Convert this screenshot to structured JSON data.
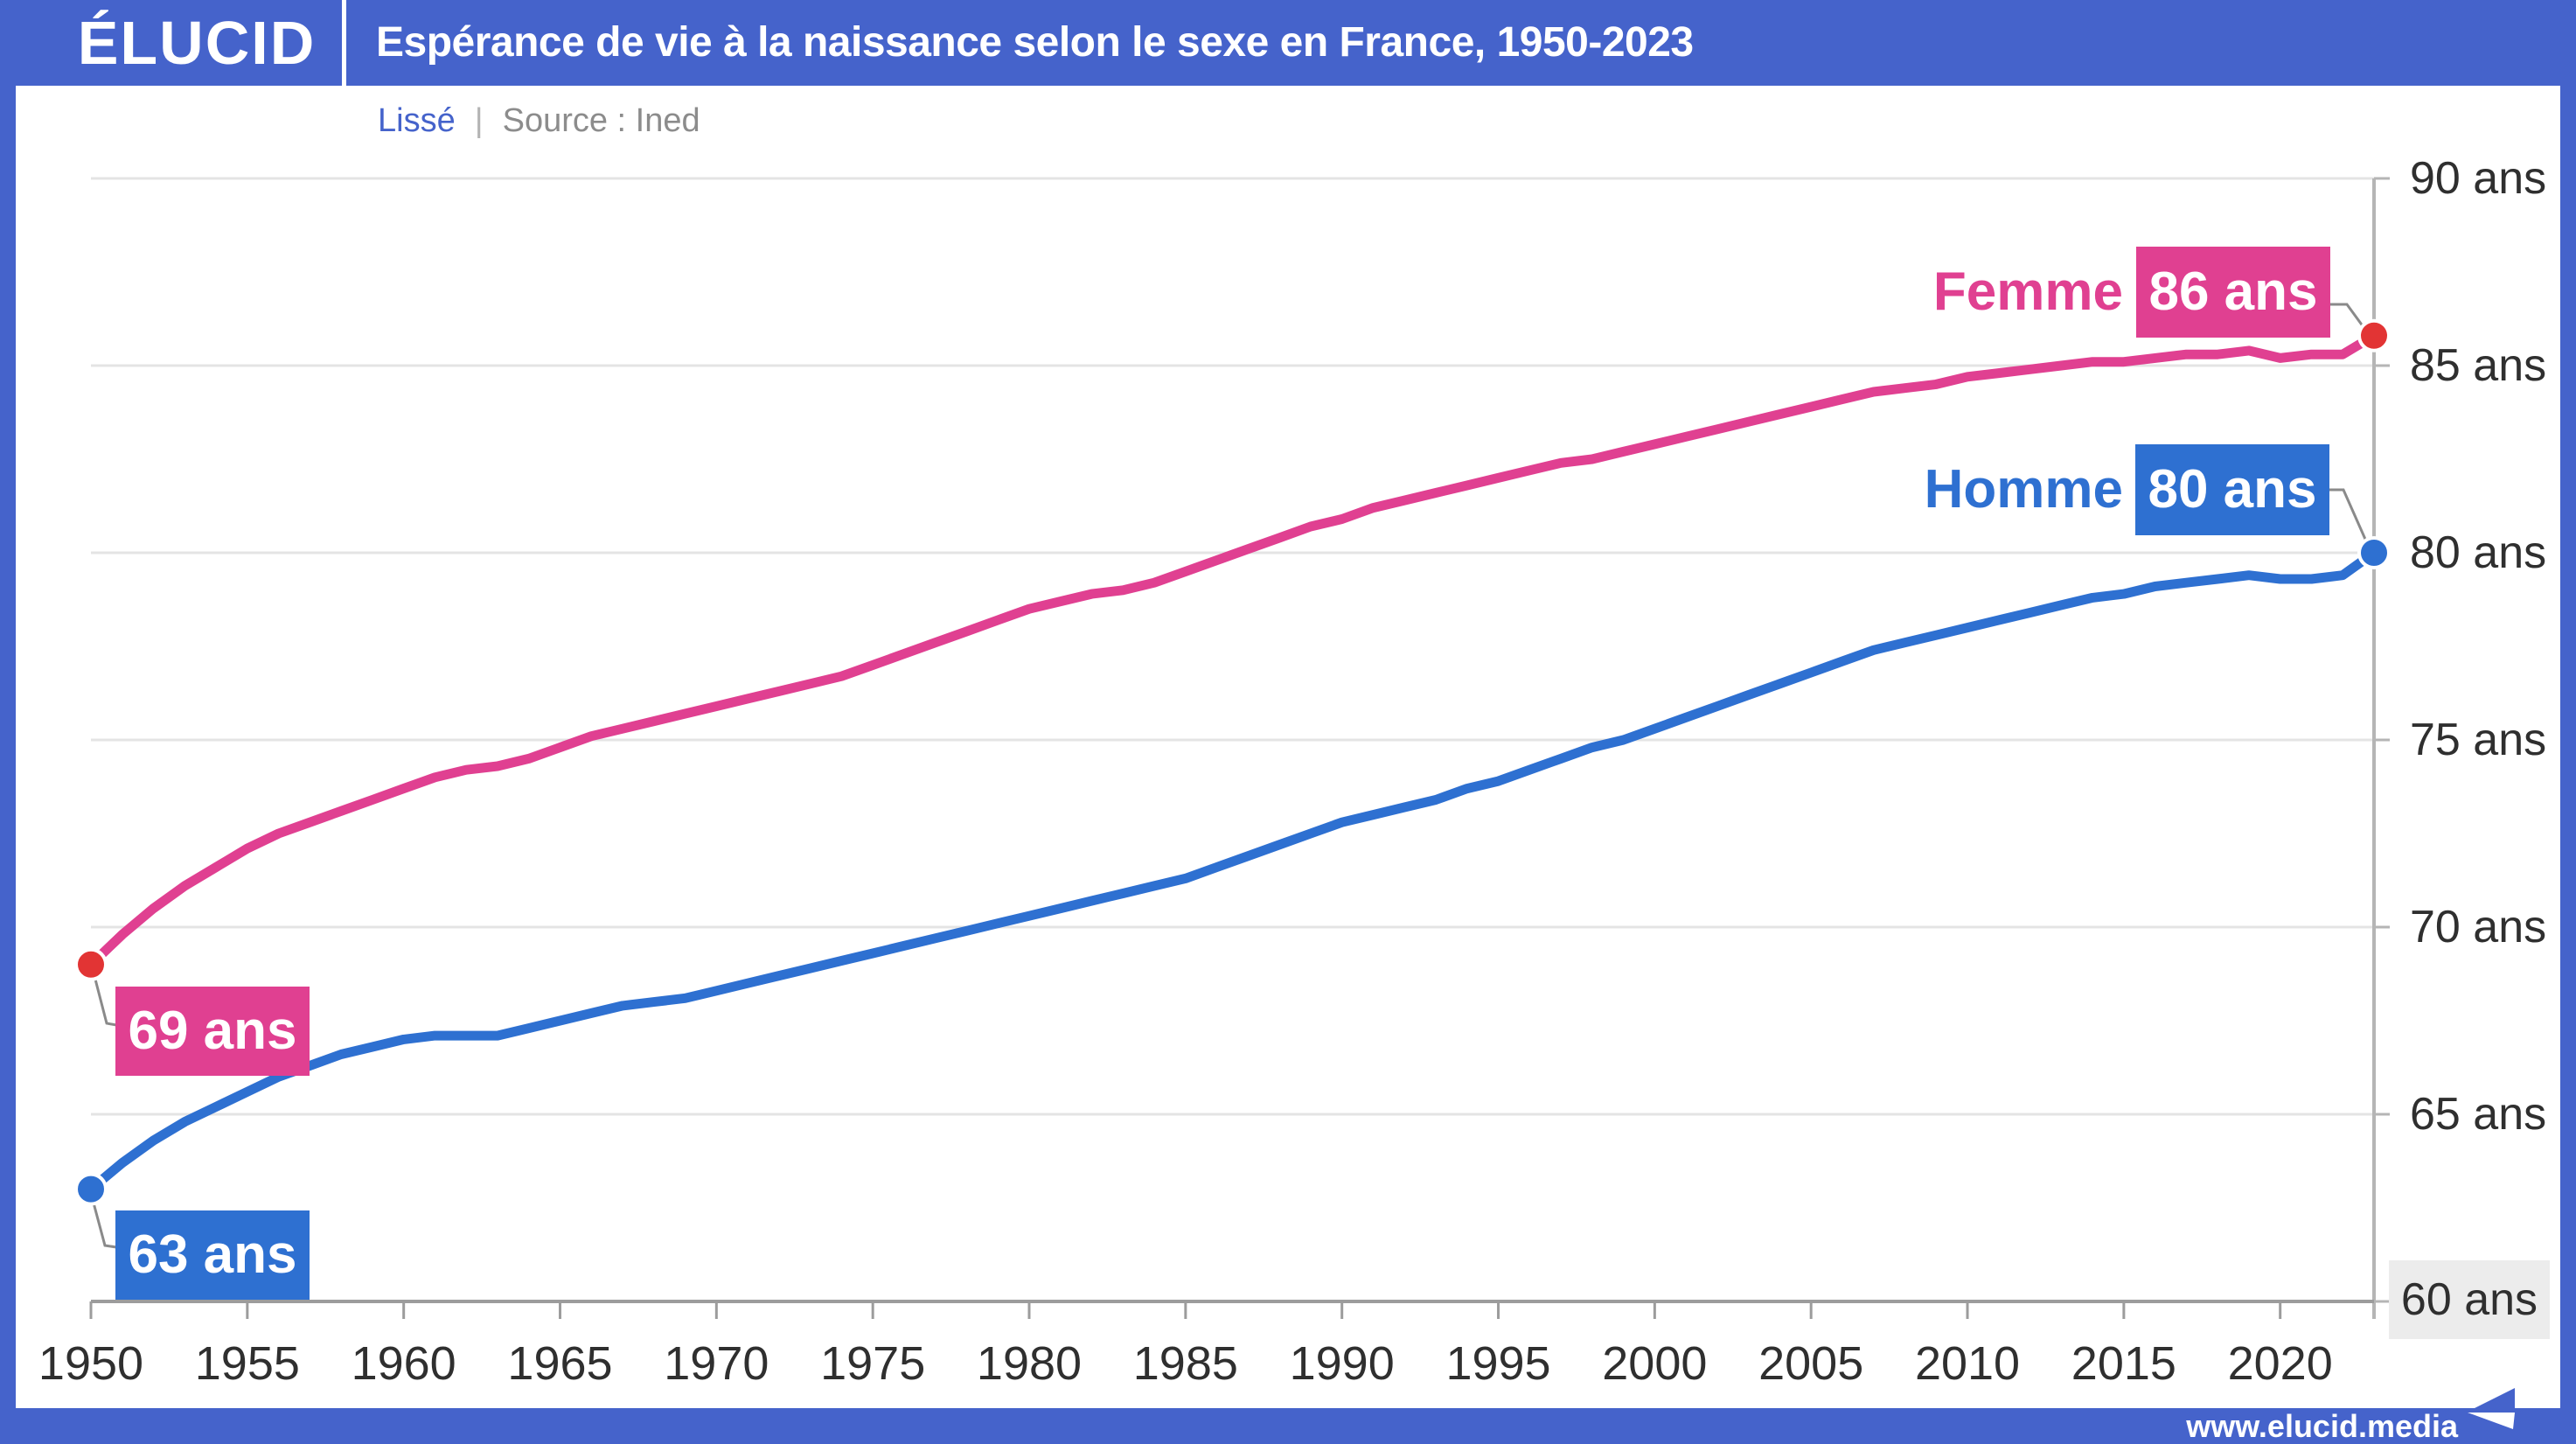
{
  "header": {
    "logo": "ÉLUCID",
    "title": "Espérance de vie à la naissance selon le sexe en France, 1950-2023"
  },
  "subtitle": {
    "mode_label": "Lissé",
    "separator": "|",
    "source_label": "Source : Ined"
  },
  "annotations": {
    "femme_label": "Femme",
    "femme_value": "86 ans",
    "homme_label": "Homme",
    "homme_value": "80 ans",
    "femme_start_value": "69 ans",
    "homme_start_value": "63 ans"
  },
  "footer": {
    "website": "www.elucid.media"
  },
  "colors": {
    "frame_blue": "#4563cb",
    "femme_pink": "#e04091",
    "homme_blue": "#2e70d1",
    "end_dot_red": "#e23434",
    "grid": "#e4e4e4",
    "axis": "#9c9c9c",
    "axis_light": "#b5b5b5",
    "connector_gray": "#8a8a8a",
    "tick_text": "#2f2f2f",
    "muted_text": "#8c8c8c",
    "highlight_bg": "#ececec"
  },
  "chart_data": {
    "type": "line",
    "title": "Espérance de vie à la naissance selon le sexe en France, 1950-2023",
    "source": "Source : Ined",
    "smoothing": "Lissé",
    "xlabel": "",
    "ylabel": "ans",
    "xlim": [
      1950,
      2023
    ],
    "ylim": [
      60,
      90
    ],
    "grid": "horizontal",
    "legend_position": "end-of-line",
    "x": [
      1950,
      1951,
      1952,
      1953,
      1954,
      1955,
      1956,
      1957,
      1958,
      1959,
      1960,
      1961,
      1962,
      1963,
      1964,
      1965,
      1966,
      1967,
      1968,
      1969,
      1970,
      1971,
      1972,
      1973,
      1974,
      1975,
      1976,
      1977,
      1978,
      1979,
      1980,
      1981,
      1982,
      1983,
      1984,
      1985,
      1986,
      1987,
      1988,
      1989,
      1990,
      1991,
      1992,
      1993,
      1994,
      1995,
      1996,
      1997,
      1998,
      1999,
      2000,
      2001,
      2002,
      2003,
      2004,
      2005,
      2006,
      2007,
      2008,
      2009,
      2010,
      2011,
      2012,
      2013,
      2014,
      2015,
      2016,
      2017,
      2018,
      2019,
      2020,
      2021,
      2022,
      2023
    ],
    "x_ticks": [
      1950,
      1955,
      1960,
      1965,
      1970,
      1975,
      1980,
      1985,
      1990,
      1995,
      2000,
      2005,
      2010,
      2015,
      2020
    ],
    "y_ticks": [
      {
        "value": 90,
        "label": "90 ans",
        "highlight": false
      },
      {
        "value": 85,
        "label": "85 ans",
        "highlight": false
      },
      {
        "value": 80,
        "label": "80 ans",
        "highlight": false
      },
      {
        "value": 75,
        "label": "75 ans",
        "highlight": false
      },
      {
        "value": 70,
        "label": "70 ans",
        "highlight": false
      },
      {
        "value": 65,
        "label": "65 ans",
        "highlight": false
      },
      {
        "value": 60,
        "label": "60 ans",
        "highlight": true
      }
    ],
    "series": [
      {
        "name": "Femme",
        "color": "#e04091",
        "point_color": "#e23434",
        "start_label": "69 ans",
        "end_label": "86 ans",
        "values": [
          69.0,
          69.8,
          70.5,
          71.1,
          71.6,
          72.1,
          72.5,
          72.8,
          73.1,
          73.4,
          73.7,
          74.0,
          74.2,
          74.3,
          74.5,
          74.8,
          75.1,
          75.3,
          75.5,
          75.7,
          75.9,
          76.1,
          76.3,
          76.5,
          76.7,
          77.0,
          77.3,
          77.6,
          77.9,
          78.2,
          78.5,
          78.7,
          78.9,
          79.0,
          79.2,
          79.5,
          79.8,
          80.1,
          80.4,
          80.7,
          80.9,
          81.2,
          81.4,
          81.6,
          81.8,
          82.0,
          82.2,
          82.4,
          82.5,
          82.7,
          82.9,
          83.1,
          83.3,
          83.5,
          83.7,
          83.9,
          84.1,
          84.3,
          84.4,
          84.5,
          84.7,
          84.8,
          84.9,
          85.0,
          85.1,
          85.1,
          85.2,
          85.3,
          85.3,
          85.4,
          85.2,
          85.3,
          85.3,
          85.8
        ]
      },
      {
        "name": "Homme",
        "color": "#2e70d1",
        "point_color": "#2e70d1",
        "start_label": "63 ans",
        "end_label": "80 ans",
        "values": [
          63.0,
          63.7,
          64.3,
          64.8,
          65.2,
          65.6,
          66.0,
          66.3,
          66.6,
          66.8,
          67.0,
          67.1,
          67.1,
          67.1,
          67.3,
          67.5,
          67.7,
          67.9,
          68.0,
          68.1,
          68.3,
          68.5,
          68.7,
          68.9,
          69.1,
          69.3,
          69.5,
          69.7,
          69.9,
          70.1,
          70.3,
          70.5,
          70.7,
          70.9,
          71.1,
          71.3,
          71.6,
          71.9,
          72.2,
          72.5,
          72.8,
          73.0,
          73.2,
          73.4,
          73.7,
          73.9,
          74.2,
          74.5,
          74.8,
          75.0,
          75.3,
          75.6,
          75.9,
          76.2,
          76.5,
          76.8,
          77.1,
          77.4,
          77.6,
          77.8,
          78.0,
          78.2,
          78.4,
          78.6,
          78.8,
          78.9,
          79.1,
          79.2,
          79.3,
          79.4,
          79.3,
          79.3,
          79.4,
          80.0
        ]
      }
    ]
  }
}
